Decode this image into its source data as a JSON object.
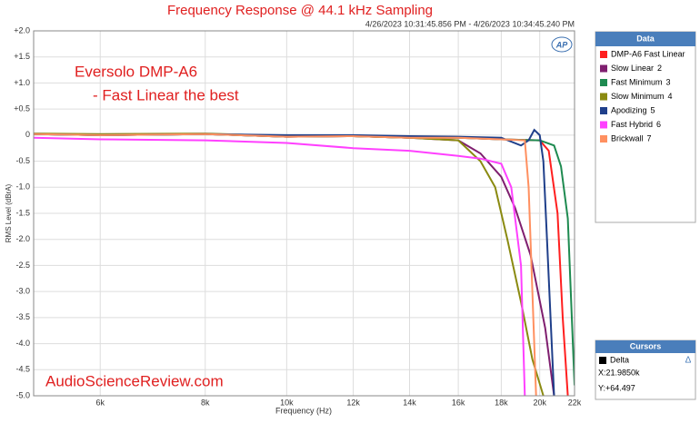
{
  "chart_data": {
    "type": "line",
    "title": "Frequency Response @ 44.1 kHz Sampling",
    "subtitle": "4/26/2023 10:31:45.856 PM - 4/26/2023 10:34:45.240 PM",
    "annotations": [
      "Eversolo DMP-A6",
      "- Fast Linear the best",
      "AudioScienceReview.com"
    ],
    "x_label": "Frequency (Hz)",
    "y_label": "RMS Level (dBrA)",
    "log_x": true,
    "grid": true,
    "xlim": [
      5000,
      22000
    ],
    "ylim": [
      -5,
      2
    ],
    "xticks": [
      {
        "value": 6000,
        "label": "6k"
      },
      {
        "value": 8000,
        "label": "8k"
      },
      {
        "value": 10000,
        "label": "10k"
      },
      {
        "value": 12000,
        "label": "12k"
      },
      {
        "value": 14000,
        "label": "14k"
      },
      {
        "value": 16000,
        "label": "16k"
      },
      {
        "value": 18000,
        "label": "18k"
      },
      {
        "value": 20000,
        "label": "20k"
      },
      {
        "value": 22000,
        "label": "22k"
      }
    ],
    "yticks": [
      {
        "value": 2,
        "label": "+2.0"
      },
      {
        "value": 1.5,
        "label": "+1.5"
      },
      {
        "value": 1,
        "label": "+1.0"
      },
      {
        "value": 0.5,
        "label": "+0.5"
      },
      0,
      -0.5,
      {
        "value": -1,
        "label": "-1.0"
      },
      -1.5,
      {
        "value": -2,
        "label": "-2.0"
      },
      -2.5,
      {
        "value": -3,
        "label": "-3.0"
      },
      -3.5,
      {
        "value": -4,
        "label": "-4.0"
      },
      -4.5,
      {
        "value": -5,
        "label": "-5.0"
      }
    ],
    "legend_title": "Data",
    "legend_position": "right",
    "series": [
      {
        "name": "DMP-A6 Fast Linear",
        "color": "#ff1f1f",
        "x": [
          5000,
          6000,
          8000,
          10000,
          12000,
          14000,
          16000,
          18000,
          20000,
          20500,
          21000,
          21300,
          21600
        ],
        "values": [
          0.02,
          0,
          0.02,
          -0.03,
          -0.02,
          -0.05,
          -0.05,
          -0.08,
          -0.1,
          -0.3,
          -1.5,
          -3.5,
          -5
        ]
      },
      {
        "name": "Slow Linear",
        "number": "2",
        "color": "#7f1f6f",
        "x": [
          5000,
          6000,
          8000,
          10000,
          12000,
          14000,
          16000,
          17000,
          18000,
          18700,
          19500,
          20300,
          20800
        ],
        "values": [
          0.02,
          0,
          0.02,
          -0.03,
          -0.02,
          -0.05,
          -0.1,
          -0.35,
          -0.8,
          -1.4,
          -2.3,
          -3.7,
          -5
        ]
      },
      {
        "name": "Fast Minimum",
        "number": "3",
        "color": "#1e8a50",
        "x": [
          5000,
          6000,
          8000,
          10000,
          12000,
          14000,
          16000,
          18000,
          20000,
          20800,
          21200,
          21600,
          22000
        ],
        "values": [
          0.02,
          0,
          0.02,
          -0.03,
          -0.02,
          -0.05,
          -0.05,
          -0.08,
          -0.1,
          -0.2,
          -0.6,
          -1.6,
          -4.8
        ]
      },
      {
        "name": "Slow Minimum",
        "number": "4",
        "color": "#8a8a10",
        "x": [
          5000,
          6000,
          8000,
          10000,
          12000,
          14000,
          16000,
          17000,
          17700,
          18300,
          19000,
          19600,
          20200
        ],
        "values": [
          0.03,
          0.02,
          0.03,
          -0.02,
          -0.02,
          -0.05,
          -0.1,
          -0.5,
          -1,
          -2,
          -3.2,
          -4.3,
          -5
        ]
      },
      {
        "name": "Apodizing",
        "number": "5",
        "color": "#1f3f8a",
        "x": [
          5000,
          6000,
          8000,
          10000,
          12000,
          14000,
          16000,
          18000,
          19000,
          19400,
          19700,
          20000,
          20200,
          20400,
          20800
        ],
        "values": [
          0.02,
          0,
          0.02,
          0,
          0,
          -0.02,
          -0.03,
          -0.05,
          -0.2,
          -0.1,
          0.1,
          0,
          -0.5,
          -2,
          -5
        ]
      },
      {
        "name": "Fast Hybrid",
        "number": "6",
        "color": "#ff40ff",
        "x": [
          5000,
          6000,
          8000,
          10000,
          12000,
          14000,
          16000,
          17000,
          18000,
          18500,
          19000,
          19200
        ],
        "values": [
          -0.05,
          -0.08,
          -0.1,
          -0.15,
          -0.25,
          -0.3,
          -0.4,
          -0.45,
          -0.55,
          -1,
          -2.5,
          -5
        ]
      },
      {
        "name": "Brickwall",
        "number": "7",
        "color": "#ff9060",
        "x": [
          5000,
          6000,
          8000,
          10000,
          12000,
          14000,
          16000,
          18000,
          19200,
          19400,
          19600,
          19800
        ],
        "values": [
          0.02,
          0,
          0.02,
          -0.03,
          -0.02,
          -0.05,
          -0.05,
          -0.08,
          -0.1,
          -1,
          -3,
          -5
        ]
      }
    ],
    "cursors": {
      "title": "Cursors",
      "name": "Delta",
      "x_readout": "X:21.9850k",
      "y_readout": "Y:+64.497"
    }
  }
}
